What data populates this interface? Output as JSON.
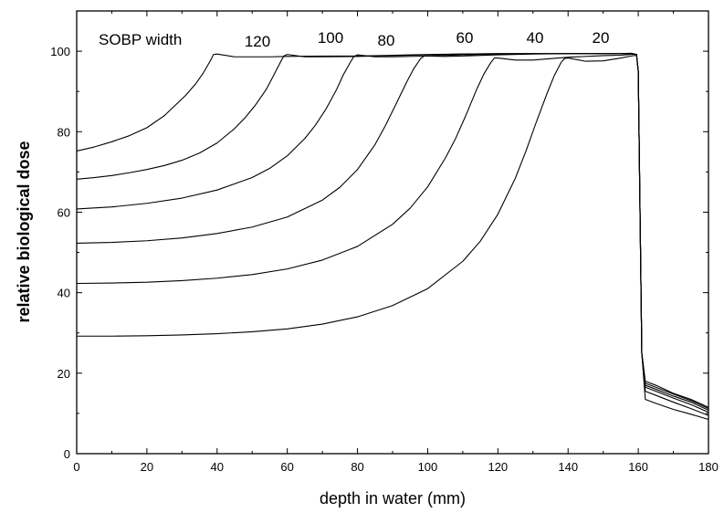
{
  "chart_data": {
    "type": "line",
    "xlabel": "depth in water (mm)",
    "ylabel": "relative biological dose",
    "xlim": [
      0,
      180
    ],
    "ylim": [
      0,
      110
    ],
    "x_ticks": [
      0,
      20,
      40,
      60,
      80,
      100,
      120,
      140,
      160,
      180
    ],
    "y_ticks": [
      0,
      20,
      40,
      60,
      80,
      100
    ],
    "grid": false,
    "legend": null,
    "annotations": [
      "SOBP width",
      "120",
      "100",
      "80",
      "60",
      "40",
      "20"
    ],
    "series": [
      {
        "x": [
          0,
          5,
          10,
          15,
          20,
          25,
          28,
          31,
          34,
          36,
          38,
          39,
          40,
          45,
          50,
          55,
          60,
          70,
          80,
          90,
          100,
          110,
          120,
          130,
          140,
          150,
          155,
          158,
          159.5,
          160,
          160.5,
          161,
          162,
          165,
          170,
          175,
          180
        ],
        "y": [
          75.2,
          76.2,
          77.5,
          79,
          81,
          84,
          86.5,
          89,
          92,
          94.5,
          97.5,
          99.2,
          99.3,
          98.6,
          98.6,
          98.6,
          98.7,
          98.8,
          98.8,
          99,
          99.2,
          99.3,
          99.4,
          99.4,
          99.4,
          99.4,
          99.4,
          99.5,
          99.2,
          95,
          60,
          25,
          18,
          17,
          15,
          13.5,
          11.5
        ]
      },
      {
        "x": [
          0,
          5,
          10,
          15,
          20,
          25,
          30,
          35,
          40,
          45,
          48,
          51,
          54,
          56,
          58,
          59,
          60,
          65,
          70,
          80,
          90,
          100,
          110,
          120,
          130,
          140,
          150,
          155,
          158,
          159.5,
          160,
          160.5,
          161,
          162,
          165,
          170,
          175,
          180
        ],
        "y": [
          68.2,
          68.6,
          69.1,
          69.8,
          70.6,
          71.6,
          72.9,
          74.7,
          77.2,
          80.8,
          83.5,
          86.7,
          90.5,
          93.8,
          97.2,
          98.8,
          99.2,
          98.6,
          98.6,
          98.7,
          98.9,
          99.1,
          99.3,
          99.4,
          99.4,
          99.4,
          99.4,
          99.4,
          99.4,
          99.2,
          95,
          60,
          25,
          17.5,
          16.5,
          14.8,
          13.2,
          11.2
        ]
      },
      {
        "x": [
          0,
          10,
          20,
          30,
          40,
          50,
          55,
          60,
          65,
          68,
          71,
          74,
          76,
          78,
          79,
          80,
          85,
          90,
          100,
          110,
          120,
          130,
          140,
          150,
          155,
          158,
          159.5,
          160,
          160.5,
          161,
          162,
          165,
          170,
          175,
          180
        ],
        "y": [
          60.8,
          61.3,
          62.2,
          63.5,
          65.5,
          68.6,
          70.9,
          74,
          78.3,
          81.6,
          85.6,
          90.4,
          94.2,
          97.3,
          98.7,
          99.1,
          98.6,
          98.6,
          98.8,
          99.1,
          99.3,
          99.4,
          99.4,
          99.4,
          99.4,
          99.4,
          99.2,
          95,
          60,
          25,
          17,
          16,
          14.3,
          12.8,
          10.8
        ]
      },
      {
        "x": [
          0,
          10,
          20,
          30,
          40,
          50,
          60,
          70,
          75,
          80,
          85,
          88,
          91,
          94,
          96,
          98,
          99,
          100,
          105,
          110,
          120,
          130,
          140,
          150,
          155,
          158,
          159.5,
          160,
          160.5,
          161,
          162,
          165,
          170,
          175,
          180
        ],
        "y": [
          52.3,
          52.5,
          52.9,
          53.6,
          54.7,
          56.3,
          58.8,
          63,
          66.2,
          70.6,
          76.8,
          81.6,
          86.9,
          92.3,
          95.6,
          98.2,
          98.8,
          98.8,
          98.7,
          98.8,
          99.1,
          99.3,
          99.4,
          99.4,
          99.4,
          99.4,
          99.2,
          95,
          60,
          25,
          16.5,
          15.5,
          13.8,
          12.2,
          10.3
        ]
      },
      {
        "x": [
          0,
          10,
          20,
          30,
          40,
          50,
          60,
          70,
          80,
          90,
          95,
          100,
          105,
          108,
          111,
          114,
          116,
          118,
          119,
          120,
          125,
          130,
          140,
          150,
          155,
          158,
          159.5,
          160,
          160.5,
          161,
          162,
          165,
          170,
          175,
          180
        ],
        "y": [
          42.3,
          42.4,
          42.6,
          43,
          43.6,
          44.5,
          45.9,
          48.1,
          51.5,
          57,
          61,
          66.3,
          73.4,
          78.4,
          84.3,
          90.6,
          94.3,
          97.2,
          98.3,
          98.3,
          97.8,
          97.8,
          98.5,
          98.9,
          99,
          99.2,
          99.2,
          95,
          60,
          25,
          15.5,
          14.5,
          12.8,
          11.2,
          9.5
        ]
      },
      {
        "x": [
          0,
          10,
          20,
          30,
          40,
          50,
          60,
          70,
          80,
          90,
          100,
          110,
          115,
          120,
          125,
          128,
          131,
          134,
          136,
          138,
          139,
          140,
          145,
          150,
          155,
          158,
          159.5,
          160,
          160.5,
          161,
          162,
          165,
          170,
          175,
          180
        ],
        "y": [
          29.2,
          29.2,
          29.3,
          29.5,
          29.8,
          30.3,
          31,
          32.2,
          34,
          36.8,
          41,
          47.8,
          52.8,
          59.5,
          68.5,
          75.2,
          82.5,
          89.5,
          93.8,
          97.2,
          98.2,
          98.3,
          97.5,
          97.6,
          98.3,
          98.8,
          99,
          95,
          60,
          25,
          13.5,
          12.5,
          11,
          9.8,
          8.5
        ]
      }
    ]
  }
}
